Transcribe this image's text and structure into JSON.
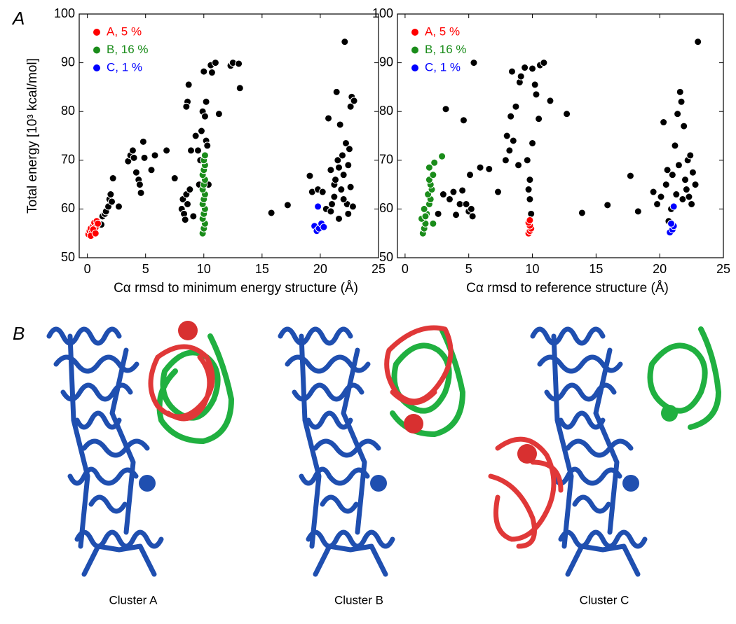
{
  "figure": {
    "panel_labels": [
      "A",
      "B"
    ],
    "captions": [
      "Cluster A",
      "Cluster B",
      "Cluster C"
    ]
  },
  "chart_data": [
    {
      "type": "scatter",
      "xlabel": "Cα rmsd to minimum energy structure (Å)",
      "ylabel": "Total energy [10³ kcal/mol]",
      "xlim": [
        -0.7,
        25
      ],
      "ylim": [
        50,
        100
      ],
      "xticks": [
        0,
        5,
        10,
        15,
        20,
        25
      ],
      "yticks": [
        50,
        60,
        70,
        80,
        90,
        100
      ],
      "legend": "upper left",
      "series": [
        {
          "color": "#000000",
          "x": [
            1.2,
            1.3,
            1.5,
            1.6,
            1.8,
            1.9,
            2.0,
            2.1,
            2.2,
            2.7,
            3.5,
            3.7,
            3.9,
            4.0,
            4.2,
            4.4,
            4.5,
            4.6,
            4.8,
            4.9,
            5.5,
            5.8,
            6.8,
            7.5,
            8.1,
            8.2,
            8.3,
            8.4,
            8.5,
            8.6,
            8.7,
            8.6,
            8.8,
            8.9,
            8.5,
            9.1,
            9.3,
            9.5,
            9.6,
            9.7,
            9.8,
            9.9,
            10.0,
            10.2,
            10.1,
            10.2,
            10.3,
            10.4,
            10.6,
            10.7,
            11.0,
            11.3,
            12.3,
            12.5,
            13.0,
            13.1,
            15.8,
            17.2,
            19.1,
            19.3,
            19.8,
            20.2,
            20.5,
            20.7,
            20.9,
            21.0,
            21.2,
            21.4,
            21.5,
            21.6,
            21.7,
            21.8,
            22.0,
            22.1,
            22.2,
            22.3,
            22.4,
            22.5,
            22.6,
            22.7,
            22.8,
            22.9,
            22.0,
            21.3,
            22.4,
            21.9,
            20.9,
            21.2,
            22.6,
            21.6
          ],
          "values": [
            56.8,
            58.5,
            59,
            59.5,
            60.5,
            62,
            63,
            61.5,
            66.3,
            60.5,
            69.8,
            71,
            72,
            70.5,
            67.5,
            66,
            65,
            63.3,
            73.8,
            70.5,
            68,
            71,
            72,
            66.3,
            60,
            62,
            59,
            57.8,
            63,
            61,
            85.5,
            82,
            64,
            72,
            81,
            58.5,
            75,
            72,
            65,
            70,
            76,
            80,
            88.2,
            82,
            79,
            74,
            73,
            65,
            89.5,
            88,
            90,
            79.5,
            89.4,
            90,
            89.8,
            84.8,
            59.2,
            60.8,
            66.8,
            63.5,
            64,
            63.5,
            60,
            78.6,
            68,
            61,
            65,
            84,
            70,
            58,
            77.3,
            64,
            67,
            94.3,
            73.5,
            61,
            69,
            72.3,
            81,
            83,
            60.5,
            82.2,
            62,
            66,
            59,
            71,
            59.5,
            62.5,
            64.5,
            68.5
          ]
        },
        {
          "name": "A, 5 %",
          "color": "#ff0000",
          "x": [
            0.1,
            0.2,
            0.3,
            0.4,
            0.5,
            0.6,
            0.7,
            0.8,
            0.3,
            0.9,
            0.5,
            0.7
          ],
          "values": [
            54.8,
            55.5,
            56,
            55.2,
            56.5,
            57.2,
            56.2,
            57.5,
            54.5,
            57,
            55.8,
            55
          ]
        },
        {
          "name": "B, 16 %",
          "color": "#1a8c1a",
          "x": [
            9.9,
            10.0,
            10.1,
            9.9,
            10.0,
            10.1,
            9.9,
            10.0,
            10.1,
            9.9,
            10.0,
            10.1,
            9.9,
            10.0,
            10.1,
            10.0,
            10.1
          ],
          "values": [
            55,
            56,
            57,
            58,
            59,
            60,
            61,
            62,
            63,
            64,
            65,
            66,
            67,
            68,
            69,
            70,
            71
          ]
        },
        {
          "name": "C, 1 %",
          "color": "#0000ff",
          "x": [
            19.5,
            19.7,
            19.9,
            20.1,
            20.3,
            19.8
          ],
          "values": [
            56.5,
            55.5,
            56,
            57,
            56.3,
            60.5
          ]
        }
      ]
    },
    {
      "type": "scatter",
      "xlabel": "Cα rmsd to reference structure (Å)",
      "xlim": [
        -0.6,
        25
      ],
      "ylim": [
        50,
        100
      ],
      "xticks": [
        0,
        5,
        10,
        15,
        20,
        25
      ],
      "yticks": [
        50,
        60,
        70,
        80,
        90,
        100
      ],
      "legend": "upper left",
      "series": [
        {
          "color": "#000000",
          "x": [
            2.6,
            3.0,
            3.2,
            3.5,
            3.8,
            4.0,
            4.3,
            4.5,
            4.6,
            4.8,
            5.0,
            5.1,
            5.2,
            5.3,
            5.4,
            5.9,
            6.6,
            7.3,
            7.9,
            8.0,
            8.2,
            8.3,
            8.4,
            8.5,
            8.7,
            8.9,
            9.0,
            9.1,
            9.4,
            9.6,
            9.7,
            9.8,
            9.9,
            10.0,
            9.8,
            10.0,
            10.2,
            10.3,
            10.5,
            10.6,
            10.9,
            11.4,
            12.7,
            13.9,
            15.9,
            17.7,
            18.3,
            19.5,
            19.8,
            20.1,
            20.3,
            20.5,
            20.7,
            20.9,
            21.0,
            21.2,
            21.4,
            21.5,
            21.6,
            21.7,
            21.8,
            21.9,
            22.0,
            22.1,
            22.2,
            22.4,
            22.5,
            22.6,
            22.8,
            23.0,
            21.3,
            20.6,
            22.3
          ],
          "values": [
            59,
            63,
            80.5,
            62,
            63.5,
            58.8,
            61,
            63.8,
            78.2,
            61,
            59.5,
            67,
            60,
            58.5,
            90,
            68.5,
            68.2,
            63.5,
            70,
            75,
            72,
            79,
            88.2,
            74,
            81,
            69,
            86,
            87.2,
            89,
            70,
            64,
            62,
            59,
            73.5,
            66,
            88.8,
            85.5,
            83.5,
            78.5,
            89.5,
            90,
            82.2,
            79.5,
            59.2,
            60.8,
            66.8,
            59.5,
            63.5,
            61,
            62.5,
            77.8,
            65,
            57.5,
            60,
            67,
            73,
            79.5,
            69,
            84,
            82,
            62,
            77,
            66,
            64,
            70,
            71,
            61,
            67.5,
            65,
            94.3,
            63,
            68,
            62.5
          ]
        },
        {
          "name": "A, 5 %",
          "color": "#ff0000",
          "x": [
            9.7,
            9.8,
            9.9,
            9.8,
            9.7,
            9.8
          ],
          "values": [
            55,
            55.5,
            56,
            56.6,
            57.2,
            57.7
          ]
        },
        {
          "name": "B, 16 %",
          "color": "#1a8c1a",
          "x": [
            1.4,
            1.5,
            1.6,
            1.3,
            1.7,
            1.5,
            1.9,
            2.0,
            1.8,
            2.1,
            2.0,
            1.9,
            2.2,
            1.9,
            2.3,
            2.9,
            1.6,
            2.2
          ],
          "values": [
            55,
            56,
            57,
            58,
            59,
            60,
            61,
            62,
            63,
            64,
            65,
            66,
            67,
            68.5,
            69.5,
            70.8,
            58.5,
            57
          ]
        },
        {
          "name": "C, 1 %",
          "color": "#0000ff",
          "x": [
            20.8,
            21.0,
            21.1,
            20.9,
            21.1
          ],
          "values": [
            55.2,
            55.8,
            56.5,
            57,
            60.5
          ]
        }
      ]
    }
  ]
}
